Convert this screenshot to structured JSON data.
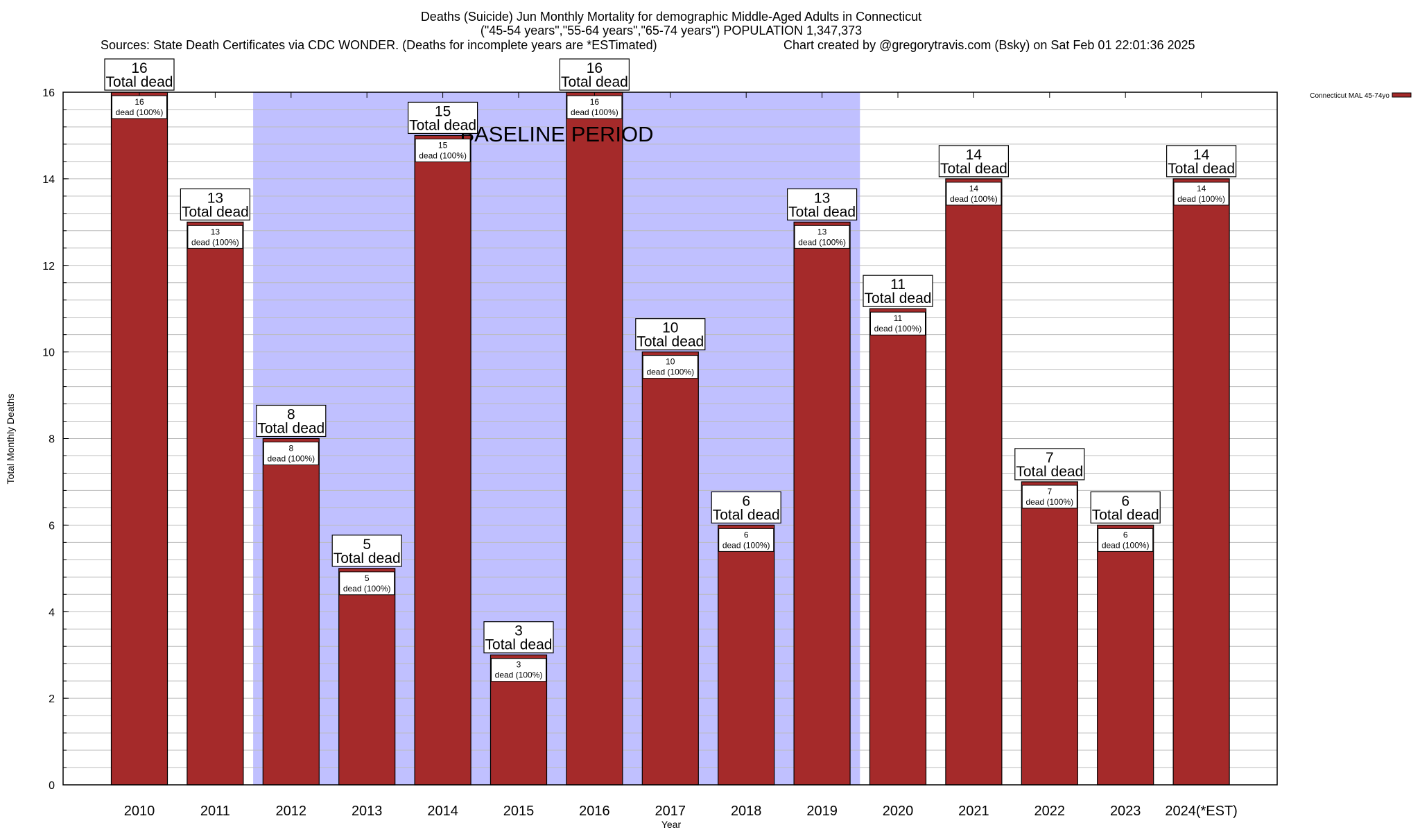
{
  "chart_data": {
    "type": "bar",
    "title": "Deaths (Suicide) Jun Monthly Mortality for demographic Middle-Aged Adults in Connecticut",
    "subtitle": "(\"45-54 years\",\"55-64 years\",\"65-74 years\") POPULATION 1,347,373",
    "sources": "Sources: State Death Certificates via CDC WONDER. (Deaths for incomplete years are *ESTimated)",
    "credit": "Chart created by @gregorytravis.com (Bsky) on Sat Feb 01 22:01:36 2025",
    "xlabel": "Year",
    "ylabel": "Total Monthly Deaths",
    "ylim": [
      0,
      16
    ],
    "yticks": [
      "0",
      "2",
      "4",
      "6",
      "8",
      "10",
      "12",
      "14",
      "16"
    ],
    "grid": true,
    "categories": [
      "2010",
      "2011",
      "2012",
      "2013",
      "2014",
      "2015",
      "2016",
      "2017",
      "2018",
      "2019",
      "2020",
      "2021",
      "2022",
      "2023",
      "2024(*EST)"
    ],
    "series": [
      {
        "name": "Connecticut MAL 45-74yo",
        "color": "#a52a2a",
        "values": [
          16,
          13,
          8,
          5,
          15,
          3,
          16,
          10,
          6,
          13,
          11,
          14,
          7,
          6,
          14
        ]
      }
    ],
    "total_label": "Total dead",
    "inner_label": "dead (100%)",
    "baseline": {
      "label": "BASELINE PERIOD",
      "from": "2012",
      "to": "2019",
      "color": "#c0c0ff"
    },
    "legend_position": "top-right"
  }
}
